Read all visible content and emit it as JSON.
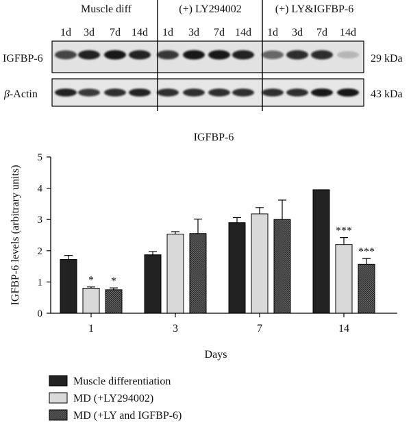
{
  "blot": {
    "groups": [
      {
        "label": "Muscle diff",
        "lanes": [
          "1d",
          "3d",
          "7d",
          "14d"
        ]
      },
      {
        "label": "(+) LY294002",
        "lanes": [
          "1d",
          "3d",
          "7d",
          "14d"
        ]
      },
      {
        "label": "(+) LY&IGFBP-6",
        "lanes": [
          "1d",
          "3d",
          "7d",
          "14d"
        ]
      }
    ],
    "rows": [
      {
        "label": "IGFBP-6",
        "size": "29 kDa"
      },
      {
        "label_prefix": "β",
        "label_rest": "-Actin",
        "size": "43 kDa"
      }
    ]
  },
  "chart_data": {
    "type": "bar",
    "title": "IGFBP-6",
    "xlabel": "Days",
    "ylabel": "IGFBP-6 levels (arbitrary units)",
    "ylim": [
      0,
      5
    ],
    "yticks": [
      "0",
      "1",
      "2",
      "3",
      "4",
      "5"
    ],
    "categories": [
      "1",
      "3",
      "7",
      "14"
    ],
    "legend_position": "bottom-left",
    "series": [
      {
        "name": "Muscle differentiation",
        "fill": "solid-dark",
        "color": "#222222",
        "values": [
          1.72,
          1.87,
          2.9,
          3.95
        ],
        "errors": [
          0.13,
          0.1,
          0.16,
          0.0
        ],
        "annotations": [
          "",
          "",
          "",
          ""
        ]
      },
      {
        "name": "MD (+LY294002)",
        "fill": "light-gray",
        "color": "#d9d9d9",
        "values": [
          0.8,
          2.53,
          3.18,
          2.2
        ],
        "errors": [
          0.04,
          0.08,
          0.2,
          0.22
        ],
        "annotations": [
          "*",
          "",
          "",
          "***"
        ]
      },
      {
        "name": "MD (+LY and IGFBP-6)",
        "fill": "dark-checker",
        "color": "#555555",
        "values": [
          0.75,
          2.55,
          3.0,
          1.57
        ],
        "errors": [
          0.06,
          0.46,
          0.62,
          0.18
        ],
        "annotations": [
          "*",
          "",
          "",
          "***"
        ]
      }
    ]
  }
}
